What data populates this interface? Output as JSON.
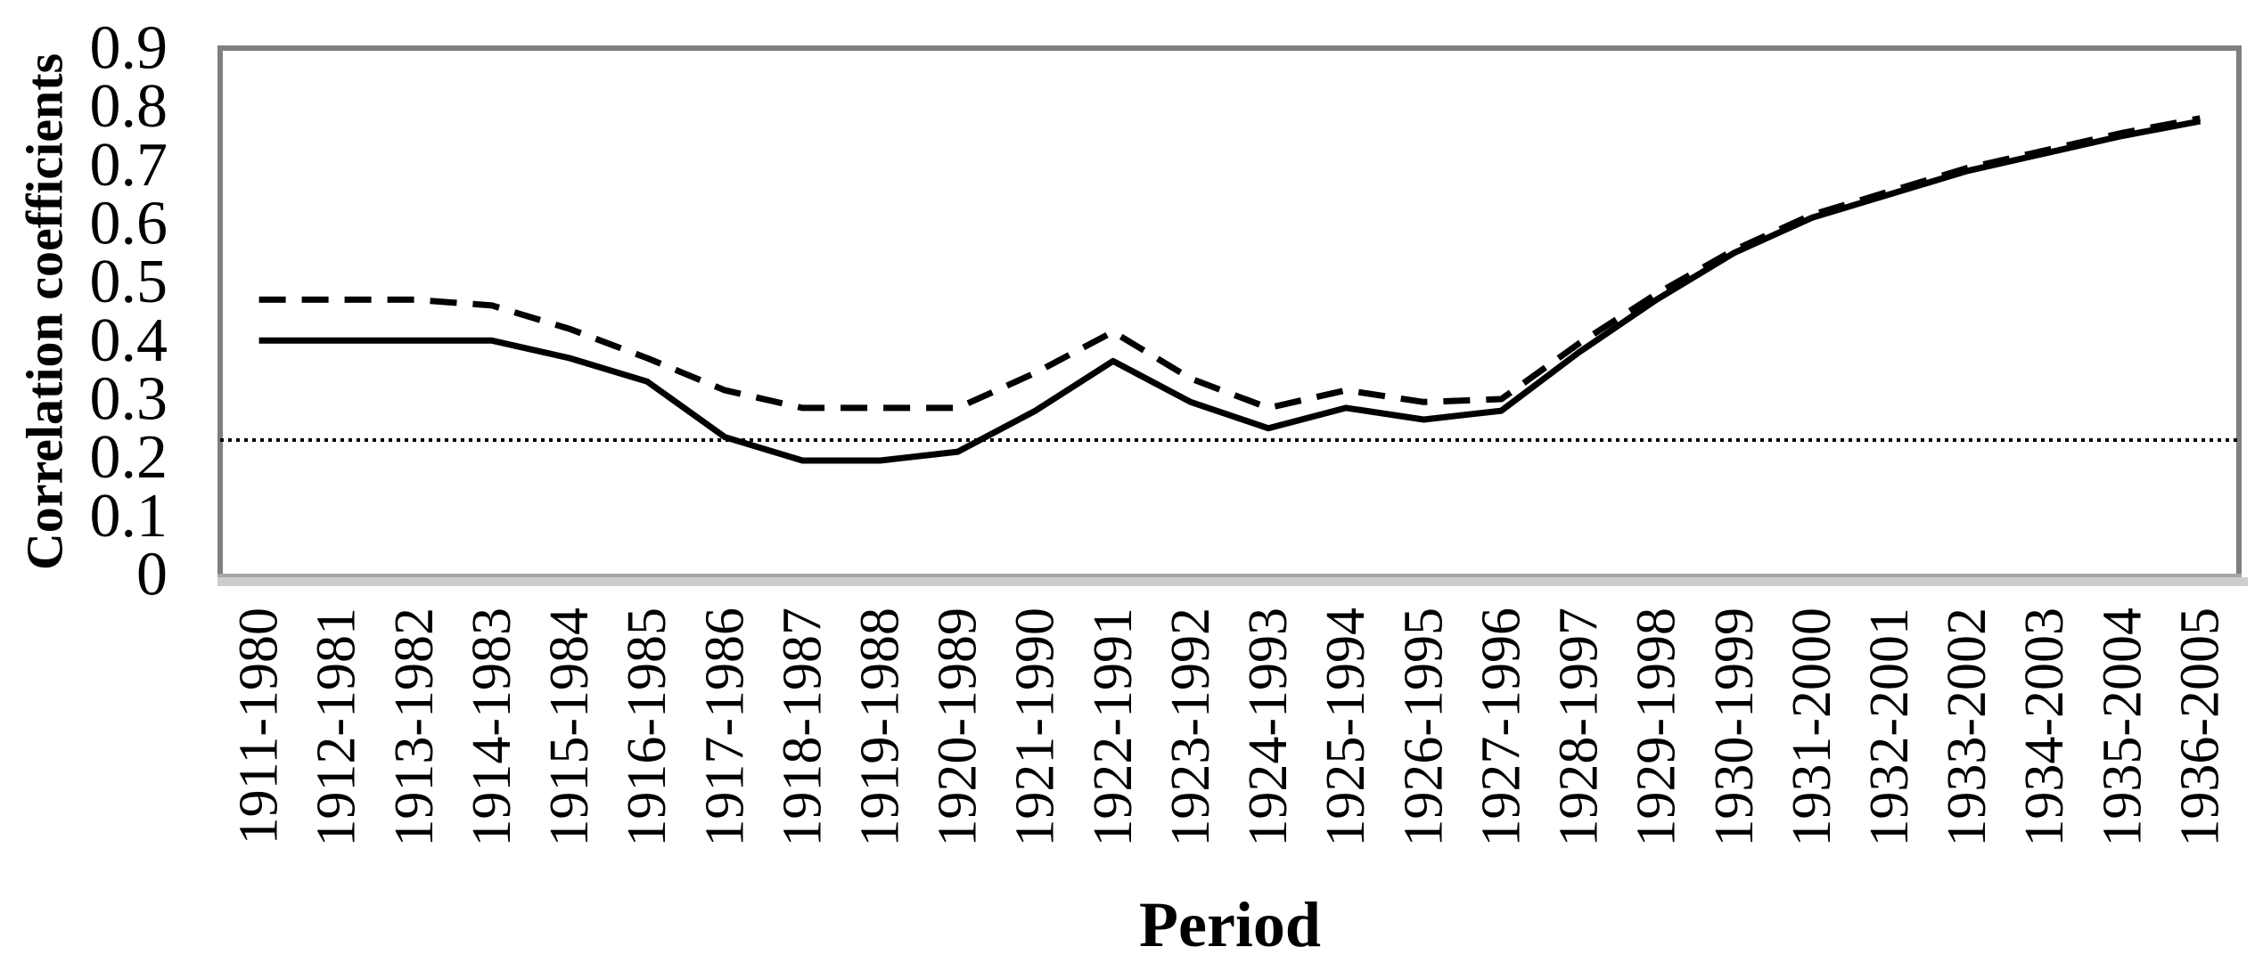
{
  "chart_data": {
    "type": "line",
    "title": "",
    "xlabel": "Period",
    "ylabel": "Correlation coefficients",
    "ylim": [
      0,
      0.9
    ],
    "ytick_step": 0.1,
    "yticks": [
      "0",
      "0.1",
      "0.2",
      "0.3",
      "0.4",
      "0.5",
      "0.6",
      "0.7",
      "0.8",
      "0.9"
    ],
    "grid": false,
    "legend": "none",
    "categories": [
      "1911-1980",
      "1912-1981",
      "1913-1982",
      "1914-1983",
      "1915-1984",
      "1916-1985",
      "1917-1986",
      "1918-1987",
      "1919-1988",
      "1920-1989",
      "1921-1990",
      "1922-1991",
      "1923-1992",
      "1924-1993",
      "1925-1994",
      "1926-1995",
      "1927-1996",
      "1928-1997",
      "1929-1998",
      "1930-1999",
      "1931-2000",
      "1932-2001",
      "1933-2002",
      "1934-2003",
      "1935-2004",
      "1936-2005"
    ],
    "series": [
      {
        "name": "solid-correlation-series",
        "line_style": "solid",
        "color": "#000000",
        "values": [
          0.4,
          0.4,
          0.4,
          0.4,
          0.37,
          0.33,
          0.235,
          0.195,
          0.195,
          0.21,
          0.28,
          0.365,
          0.295,
          0.25,
          0.285,
          0.265,
          0.28,
          0.38,
          0.47,
          0.55,
          0.61,
          0.65,
          0.69,
          0.72,
          0.75,
          0.775
        ]
      },
      {
        "name": "dashed-correlation-series",
        "line_style": "dashed",
        "color": "#000000",
        "values": [
          0.47,
          0.47,
          0.47,
          0.46,
          0.42,
          0.37,
          0.315,
          0.285,
          0.285,
          0.285,
          0.345,
          0.415,
          0.335,
          0.285,
          0.315,
          0.295,
          0.3,
          0.395,
          0.48,
          0.555,
          0.615,
          0.655,
          0.695,
          0.725,
          0.755,
          0.78
        ]
      },
      {
        "name": "significance-threshold",
        "line_style": "dotted",
        "color": "#000000",
        "constant_value": 0.23
      }
    ]
  },
  "colors": {
    "background": "#ffffff",
    "plot_border": "#7f7f7f",
    "axis_line": "#a6a6a6",
    "axis_shadow": "#cdcdcd",
    "line": "#000000",
    "text": "#000000"
  }
}
